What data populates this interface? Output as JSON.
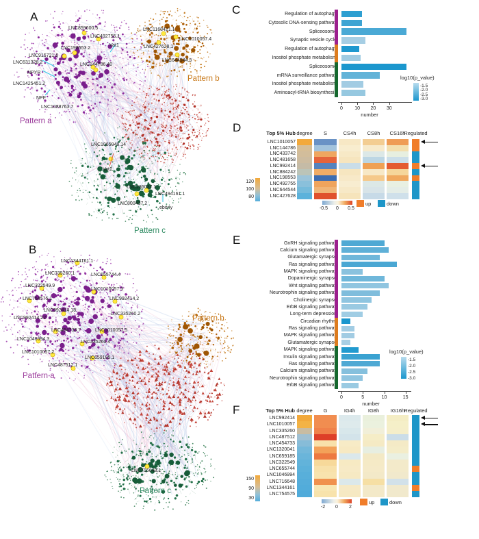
{
  "panel_letters": {
    "A": "A",
    "B": "B",
    "C": "C",
    "D": "D",
    "E": "E",
    "F": "F"
  },
  "colors": {
    "bar_group_purple": "#9C1F8E",
    "bar_group_orange": "#DD7C1E",
    "bar_group_green": "#15682E",
    "up": "#F07D2A",
    "down": "#1E96C8",
    "highlight_node": "#FFE93E",
    "pattern_a": "#9C3D9C",
    "pattern_b": "#C87818",
    "pattern_c": "#2F8B62",
    "pattern_red": "#C23B32"
  },
  "networks": {
    "A": {
      "clusters": [
        {
          "pattern": "Pattern a",
          "pattern_color": "#9C3D9C",
          "node_color": "#8E2D9E",
          "labels": [
            "LNC859600.5",
            "LNC492755.1",
            "Vat1",
            "LNC198553.2",
            "LNC915721.6",
            "LNC631328.2",
            "NPYR",
            "LNC144786.40",
            "LNC1425451.2",
            "NPF",
            "LNC1088763.7"
          ]
        },
        {
          "pattern": "Pattern b",
          "pattern_color": "#C87818",
          "node_color": "#AF5F06",
          "labels": [
            "LNC1168421.1",
            "LNC1010057.4",
            "LNC427628.1",
            "LNC644544.3"
          ]
        },
        {
          "pattern": "Pattern c",
          "pattern_color": "#2F8B62",
          "node_color": "#24714A",
          "labels": [
            "LNC1065948.14",
            "Vat1",
            "LNC236037.1",
            "LNC494161.1",
            "LNC800437.2",
            "ebony"
          ]
        },
        {
          "pattern": "",
          "pattern_color": "#C23B32",
          "node_color": "#B23228",
          "labels": []
        }
      ]
    },
    "B": {
      "clusters": [
        {
          "pattern": "Pattern a",
          "pattern_color": "#9C3D9C",
          "node_color": "#8E2D9E",
          "labels": [
            "LNC1344161.1",
            "LNC335260.1",
            "LNC655744.4",
            "LNC322549.9",
            "LNC1010057.3",
            "LNC754575.1",
            "LNC992414.2",
            "LNC992414.18",
            "LNC335260.2",
            "LNC992414.22",
            "LNC454733.7",
            "LNC1010057.5",
            "LNC1046994.3",
            "LNC335260.4",
            "LNC1010057.2",
            "LNC659185.1",
            "LNC487512.1"
          ]
        },
        {
          "pattern": "Pattern b",
          "pattern_color": "#C87818",
          "node_color": "#AF5F06",
          "labels": []
        },
        {
          "pattern": "Pattern c",
          "pattern_color": "#2F8B62",
          "node_color": "#24714A",
          "labels": [
            "LNC716648.1"
          ]
        },
        {
          "pattern": "",
          "pattern_color": "#C23B32",
          "node_color": "#B23228",
          "labels": []
        }
      ]
    }
  },
  "chart_data": [
    {
      "id": "C",
      "type": "bar",
      "xlabel": "number",
      "xticks": [
        "0",
        "10",
        "20",
        "30"
      ],
      "xlim": [
        0,
        45
      ],
      "legend_title": "log10(p_value)",
      "legend_ticks": [
        "-1.5",
        "-2.0",
        "-2.5",
        "-3.0"
      ],
      "groups": [
        {
          "color": "#9C1F8E",
          "bars": [
            {
              "label": "Regulation of autophagy",
              "value": 13,
              "color": "#2E9FD1"
            },
            {
              "label": "Cytosolic DNA-sensing pathway",
              "value": 13,
              "color": "#3DA4D3"
            },
            {
              "label": "Spliceosome",
              "value": 41,
              "color": "#4AA9D5"
            },
            {
              "label": "Synaptic vesicle cycle",
              "value": 15,
              "color": "#A6CEE4"
            }
          ]
        },
        {
          "color": "#DD7C1E",
          "bars": [
            {
              "label": "Regulation of autophagy",
              "value": 11,
              "color": "#1E98CF"
            },
            {
              "label": "Inositol phosphate metabolism",
              "value": 12,
              "color": "#9FCBE2"
            }
          ]
        },
        {
          "color": "#15682E",
          "bars": [
            {
              "label": "Spliceosome",
              "value": 41,
              "color": "#1B97CE"
            },
            {
              "label": "mRNA surveillance pathway",
              "value": 24,
              "color": "#62B3D8"
            },
            {
              "label": "Inositol phosphate metabolism",
              "value": 14,
              "color": "#A2CCE3"
            },
            {
              "label": "Aminoacyl-tRNA biosynthesis",
              "value": 15,
              "color": "#96C8E0"
            }
          ]
        }
      ]
    },
    {
      "id": "D",
      "type": "heatmap",
      "title": "Top 5% Hub",
      "columns": [
        "degree",
        "S",
        "CS4h",
        "CS8h",
        "CS16h",
        "Regulated"
      ],
      "scale_labels": [
        "-0.5",
        "0",
        "0.5"
      ],
      "up_label": "up",
      "down_label": "down",
      "degree_legend_ticks": [
        "120",
        "100",
        "80"
      ],
      "rows": [
        {
          "name": "LNC1010057",
          "degree": "#F2A93B",
          "cells": [
            "#6A92C5",
            "#F7E8C5",
            "#F3CD92",
            "#EF9C55"
          ],
          "regulated": "up",
          "arrow": true
        },
        {
          "name": "LNC144786",
          "degree": "#D6BE96",
          "cells": [
            "#A3C3DC",
            "#F8EDCF",
            "#F7EACB",
            "#F3DFAE"
          ],
          "regulated": "up",
          "arrow": false
        },
        {
          "name": "LNC433742",
          "degree": "#D2BD9B",
          "cells": [
            "#EFA660",
            "#F7E9C6",
            "#DCE8E7",
            "#E7EFE0"
          ],
          "regulated": "down",
          "arrow": false
        },
        {
          "name": "LNC481658",
          "degree": "#CDBCA0",
          "cells": [
            "#E5633B",
            "#F6E5BE",
            "#BCD6E4",
            "#CBDEE9"
          ],
          "regulated": "down",
          "arrow": false
        },
        {
          "name": "LNC992414",
          "degree": "#C5BBA6",
          "cells": [
            "#5583BE",
            "#C9DDE8",
            "#EFA155",
            "#E45B31"
          ],
          "regulated": "up",
          "arrow": true
        },
        {
          "name": "LNC884242",
          "degree": "#BBC4B8",
          "cells": [
            "#F0AC66",
            "#F6E6C0",
            "#F7E8C6",
            "#F5D69B"
          ],
          "regulated": "down",
          "arrow": false
        },
        {
          "name": "LNC198553",
          "degree": "#9CC4D9",
          "cells": [
            "#3D6DB1",
            "#F7E9C8",
            "#F5C98B",
            "#F0A95F"
          ],
          "regulated": "up",
          "arrow": false
        },
        {
          "name": "LNC492755",
          "degree": "#8AC0DB",
          "cells": [
            "#EFA45D",
            "#F8EDD0",
            "#DCE8E6",
            "#E8F0E2"
          ],
          "regulated": "down",
          "arrow": false
        },
        {
          "name": "LNC644544",
          "degree": "#76BBDB",
          "cells": [
            "#F0B577",
            "#F7E9C7",
            "#D8E4E8",
            "#E4EDE7"
          ],
          "regulated": "down",
          "arrow": false
        },
        {
          "name": "LNC427628",
          "degree": "#5CB2DB",
          "cells": [
            "#E0502C",
            "#F6E4BB",
            "#C7DAE7",
            "#CFE0EA"
          ],
          "regulated": "down",
          "arrow": false
        }
      ]
    },
    {
      "id": "E",
      "type": "bar",
      "xlabel": "number",
      "xticks": [
        "0",
        "5",
        "10",
        "15"
      ],
      "xlim": [
        0,
        16
      ],
      "legend_title": "log10(p_value)",
      "legend_ticks": [
        "-1.5",
        "-2.0",
        "-2.5",
        "-3.0"
      ],
      "groups": [
        {
          "color": "#9C1F8E",
          "bars": [
            {
              "label": "GnRH signaling pathway",
              "value": 10,
              "color": "#4FA9D4"
            },
            {
              "label": "Calcium signaling pathway",
              "value": 11,
              "color": "#5FB0D7"
            },
            {
              "label": "Glutamatergic synapse",
              "value": 9,
              "color": "#6FB7DA"
            },
            {
              "label": "Ras signaling pathway",
              "value": 13,
              "color": "#4AA7D3"
            },
            {
              "label": "MAPK signaling pathway",
              "value": 5,
              "color": "#8AC2DE"
            },
            {
              "label": "Dopaminergic synapse",
              "value": 10,
              "color": "#6FB7DA"
            },
            {
              "label": "Wnt signaling pathway",
              "value": 11,
              "color": "#90C5E0"
            },
            {
              "label": "Neurotrophin signaling pathway",
              "value": 9,
              "color": "#7FBDDC"
            },
            {
              "label": "Cholinergic synapse",
              "value": 7,
              "color": "#8FC5E0"
            },
            {
              "label": "ErbB signaling pathway",
              "value": 6,
              "color": "#9ACAE2"
            },
            {
              "label": "Long-term depression",
              "value": 5,
              "color": "#A0CDE4"
            }
          ]
        },
        {
          "color": "#DD7C1E",
          "bars": [
            {
              "label": "Circadian rhythm",
              "value": 2,
              "color": "#1B97CE"
            },
            {
              "label": "Ras signaling pathway",
              "value": 3,
              "color": "#A2CCE3"
            },
            {
              "label": "MAPK signaling pathway",
              "value": 3,
              "color": "#A2CCE3"
            },
            {
              "label": "Glutamatergic synapse",
              "value": 2,
              "color": "#A8CFE4"
            }
          ]
        },
        {
          "color": "#15682E",
          "bars": [
            {
              "label": "MAPK signaling pathway",
              "value": 4,
              "color": "#219ACF"
            },
            {
              "label": "Insulin signaling pathway",
              "value": 9,
              "color": "#3AA2D1"
            },
            {
              "label": "Ras signaling pathway",
              "value": 9,
              "color": "#4FA9D4"
            },
            {
              "label": "Calcium signaling pathway",
              "value": 6,
              "color": "#85C0DD"
            },
            {
              "label": "Neurotrophin signaling pathway",
              "value": 5,
              "color": "#90C5E0"
            },
            {
              "label": "ErbB signaling pathway",
              "value": 4,
              "color": "#9ACAE2"
            }
          ]
        }
      ]
    },
    {
      "id": "F",
      "type": "heatmap",
      "title": "Top 5% Hub",
      "columns": [
        "degree",
        "G",
        "IG4h",
        "IG8h",
        "IG16h",
        "Regulated"
      ],
      "scale_labels": [
        "-2",
        "0",
        "2"
      ],
      "up_label": "up",
      "down_label": "down",
      "degree_legend_ticks": [
        "150",
        "90",
        "30"
      ],
      "rows": [
        {
          "name": "LNC992414",
          "degree": "#F2A93B",
          "cells": [
            "#F18D50",
            "#DCE9EC",
            "#EAF0DC",
            "#F4EDC4"
          ],
          "regulated": "down",
          "arrow": true
        },
        {
          "name": "LNC1010057",
          "degree": "#F3B345",
          "cells": [
            "#F18D50",
            "#DEEAEC",
            "#EBF1DE",
            "#F5EFC8"
          ],
          "regulated": "down",
          "arrow": true
        },
        {
          "name": "LNC335260",
          "degree": "#C9BCA2",
          "cells": [
            "#F0814A",
            "#D8E7EB",
            "#F1EFD9",
            "#F5EEC9"
          ],
          "regulated": "down",
          "arrow": false
        },
        {
          "name": "LNC487512",
          "degree": "#A0C0D2",
          "cells": [
            "#DE3F28",
            "#D3E3EA",
            "#F5EDC7",
            "#CBDDE8"
          ],
          "regulated": "down",
          "arrow": false
        },
        {
          "name": "LNC454733",
          "degree": "#87BCD8",
          "cells": [
            "#F8E1AA",
            "#F7EBC6",
            "#F5EAC4",
            "#F4EAC6"
          ],
          "regulated": "down",
          "arrow": false
        },
        {
          "name": "LNC1320041",
          "degree": "#74B8DA",
          "cells": [
            "#F3A159",
            "#F7E9C2",
            "#E7EEE1",
            "#F4ECC8"
          ],
          "regulated": "down",
          "arrow": false
        },
        {
          "name": "LNC659185",
          "degree": "#6AB5DA",
          "cells": [
            "#ED7941",
            "#DBE8EB",
            "#F3E9C5",
            "#EAF0E1"
          ],
          "regulated": "down",
          "arrow": false
        },
        {
          "name": "LNC322549",
          "degree": "#62B3DA",
          "cells": [
            "#F7D99A",
            "#F7EAC3",
            "#F5EAC6",
            "#F3EACA"
          ],
          "regulated": "down",
          "arrow": false
        },
        {
          "name": "LNC655744",
          "degree": "#5CB1DA",
          "cells": [
            "#F8E1AA",
            "#F7EAC6",
            "#F5EAC8",
            "#F3EACA"
          ],
          "regulated": "up",
          "arrow": false
        },
        {
          "name": "LNC1046994",
          "degree": "#58AFDA",
          "cells": [
            "#F8E3AE",
            "#F6E9C3",
            "#F3E9C8",
            "#F1E9CC"
          ],
          "regulated": "down",
          "arrow": false
        },
        {
          "name": "LNC716648",
          "degree": "#55ADDA",
          "cells": [
            "#F0914E",
            "#DBE8EB",
            "#F6DFA4",
            "#D2E1E9"
          ],
          "regulated": "down",
          "arrow": false
        },
        {
          "name": "LNC1344161",
          "degree": "#52ACDA",
          "cells": [
            "#F8E6B2",
            "#F6E9C5",
            "#F3E9C8",
            "#F1E9CC"
          ],
          "regulated": "up",
          "arrow": false
        },
        {
          "name": "LNC754575",
          "degree": "#50ABDA",
          "cells": [
            "#F8E3AC",
            "#F6E9C3",
            "#F3E9C8",
            "#F1E9CC"
          ],
          "regulated": "down",
          "arrow": false
        }
      ]
    }
  ]
}
